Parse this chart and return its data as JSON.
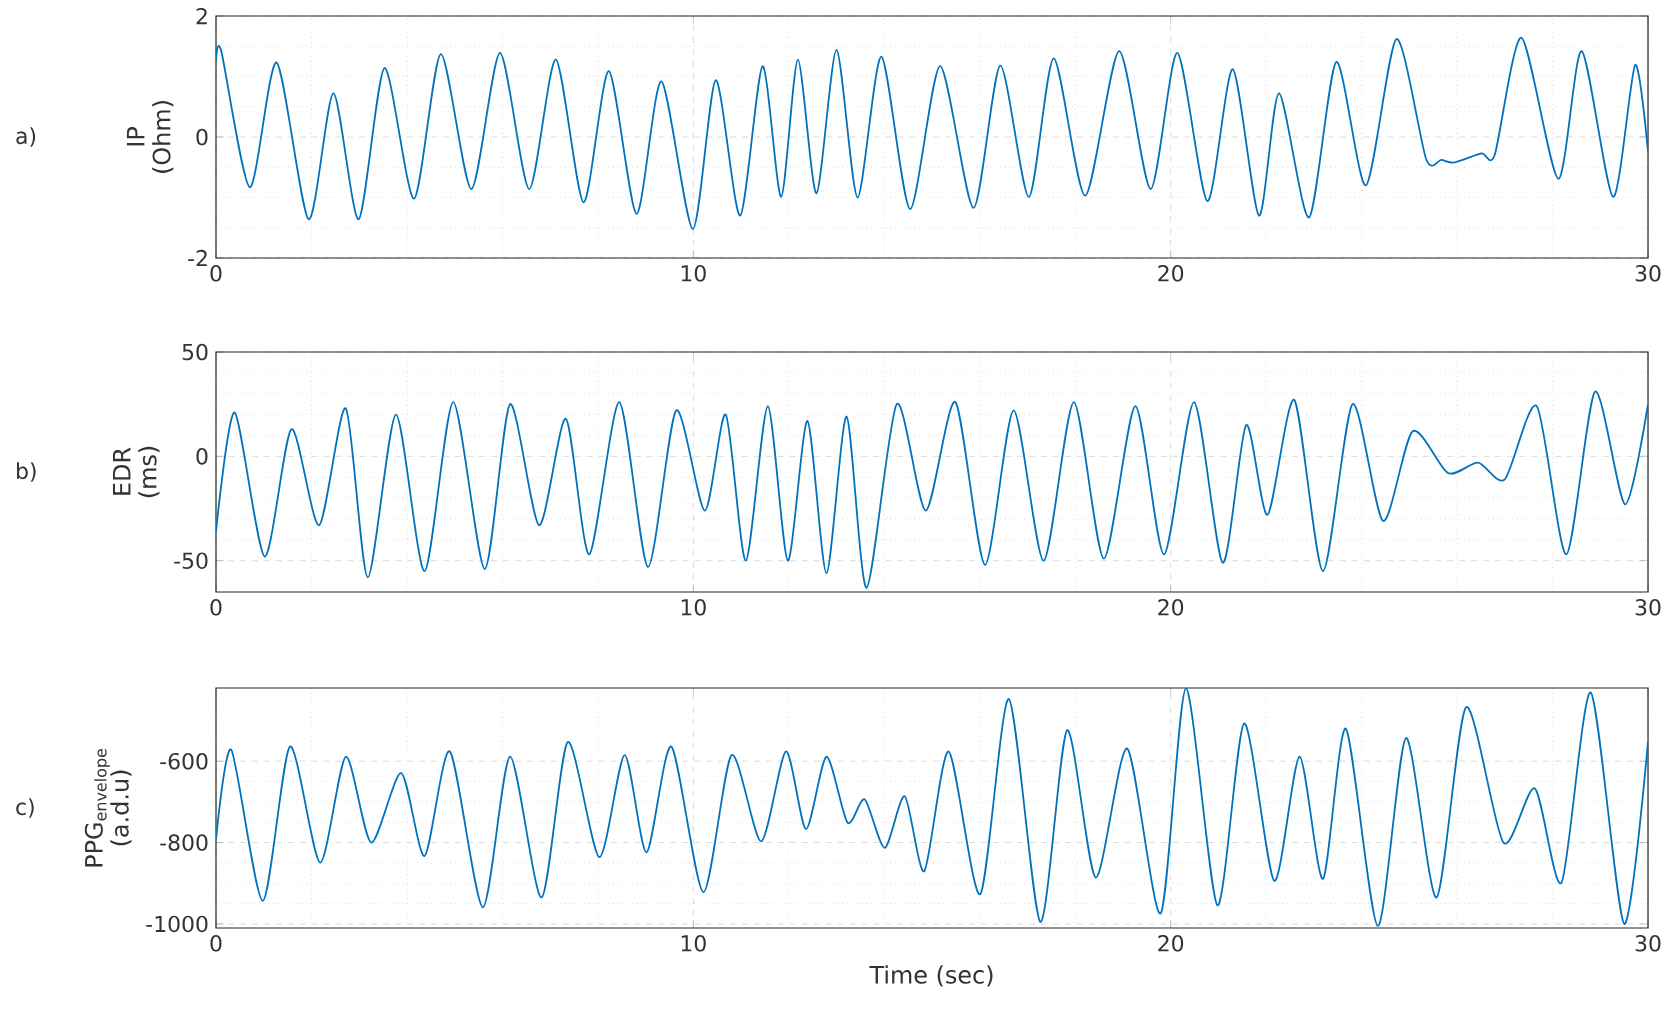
{
  "chart_data": [
    {
      "type": "line",
      "ylabel": "IP (Ohm)",
      "annotations": [
        "a)"
      ],
      "color": "#0072bd",
      "grid": true,
      "xlim": [
        0,
        30
      ],
      "xticks": [
        0,
        10,
        20,
        30
      ],
      "ylim": [
        -2,
        2
      ],
      "yticks": [
        -2,
        0,
        2
      ],
      "x": [
        0,
        0.11,
        0.71,
        1.27,
        1.94,
        2.46,
        2.99,
        3.53,
        4.15,
        4.71,
        5.35,
        5.95,
        6.56,
        7.12,
        7.7,
        8.23,
        8.81,
        9.33,
        9.99,
        10.47,
        10.98,
        11.45,
        11.84,
        12.19,
        12.58,
        13.0,
        13.44,
        13.94,
        14.54,
        15.17,
        15.87,
        16.43,
        17.03,
        17.55,
        18.21,
        18.92,
        19.58,
        20.14,
        20.77,
        21.3,
        21.85,
        22.27,
        22.9,
        23.47,
        24.09,
        24.73,
        25.35,
        25.67,
        25.95,
        26.51,
        26.79,
        27.35,
        28.12,
        28.61,
        29.27,
        29.73,
        30
      ],
      "values": [
        1.26,
        1.42,
        -0.83,
        1.23,
        -1.36,
        0.72,
        -1.36,
        1.14,
        -1.02,
        1.37,
        -0.86,
        1.39,
        -0.86,
        1.28,
        -1.08,
        1.09,
        -1.27,
        0.92,
        -1.52,
        0.94,
        -1.3,
        1.17,
        -0.99,
        1.28,
        -0.93,
        1.44,
        -1.0,
        1.33,
        -1.19,
        1.17,
        -1.17,
        1.18,
        -0.99,
        1.3,
        -0.97,
        1.42,
        -0.86,
        1.39,
        -1.06,
        1.12,
        -1.3,
        0.72,
        -1.33,
        1.24,
        -0.8,
        1.62,
        -0.36,
        -0.38,
        -0.42,
        -0.27,
        -0.29,
        1.64,
        -0.69,
        1.42,
        -0.99,
        1.19,
        -0.24
      ]
    },
    {
      "type": "line",
      "ylabel": "EDR (ms)",
      "annotations": [
        "b)"
      ],
      "color": "#0072bd",
      "grid": true,
      "xlim": [
        0,
        30
      ],
      "xticks": [
        0,
        10,
        20,
        30
      ],
      "ylim": [
        -65,
        50
      ],
      "yticks": [
        -50,
        0,
        50
      ],
      "x": [
        0,
        0.39,
        1.02,
        1.58,
        2.16,
        2.72,
        3.18,
        3.77,
        4.37,
        4.97,
        5.63,
        6.16,
        6.77,
        7.33,
        7.82,
        8.45,
        9.05,
        9.64,
        10.24,
        10.68,
        11.1,
        11.56,
        11.98,
        12.39,
        12.79,
        13.21,
        13.63,
        14.26,
        14.87,
        15.49,
        16.11,
        16.71,
        17.34,
        17.97,
        18.6,
        19.26,
        19.86,
        20.49,
        21.09,
        21.58,
        22.03,
        22.59,
        23.19,
        23.81,
        24.45,
        25.07,
        25.81,
        26.44,
        27.0,
        27.67,
        28.29,
        28.89,
        29.52,
        30
      ],
      "values": [
        -36,
        21,
        -48,
        13,
        -33,
        23,
        -58,
        20,
        -55,
        26,
        -54,
        25,
        -33,
        18,
        -47,
        26,
        -53,
        22,
        -26,
        20,
        -50,
        24,
        -50,
        17,
        -56,
        19,
        -63,
        25,
        -26,
        26,
        -52,
        22,
        -50,
        26,
        -49,
        24,
        -47,
        26,
        -51,
        15,
        -28,
        27,
        -55,
        25,
        -31,
        12,
        -8,
        -3,
        -11,
        24,
        -47,
        31,
        -23,
        25
      ]
    },
    {
      "type": "line",
      "ylabel": "PPG$_{envelope}$ (a.d.u)",
      "xlabel": "Time (sec)",
      "annotations": [
        "c)"
      ],
      "color": "#0072bd",
      "grid": true,
      "xlim": [
        0,
        30
      ],
      "xticks": [
        0,
        10,
        20,
        30
      ],
      "ylim": [
        -1010,
        -420
      ],
      "yticks": [
        -1000,
        -800,
        -600
      ],
      "x": [
        0,
        0.32,
        0.98,
        1.55,
        2.18,
        2.72,
        3.25,
        3.88,
        4.37,
        4.9,
        5.59,
        6.16,
        6.82,
        7.37,
        8.03,
        8.56,
        9.02,
        9.54,
        10.21,
        10.8,
        11.42,
        11.94,
        12.36,
        12.79,
        13.23,
        13.59,
        14.01,
        14.43,
        14.84,
        15.35,
        16.01,
        16.61,
        17.27,
        17.83,
        18.43,
        19.09,
        19.79,
        20.32,
        20.98,
        21.54,
        22.17,
        22.7,
        23.19,
        23.67,
        24.34,
        24.93,
        25.57,
        26.19,
        26.97,
        27.63,
        28.19,
        28.8,
        29.5,
        30
      ],
      "values": [
        -792,
        -572,
        -943,
        -564,
        -849,
        -589,
        -800,
        -629,
        -833,
        -576,
        -959,
        -589,
        -935,
        -553,
        -836,
        -585,
        -824,
        -564,
        -922,
        -585,
        -797,
        -576,
        -767,
        -589,
        -751,
        -694,
        -813,
        -686,
        -870,
        -576,
        -927,
        -447,
        -995,
        -524,
        -886,
        -569,
        -974,
        -421,
        -954,
        -507,
        -894,
        -589,
        -889,
        -520,
        -1005,
        -543,
        -935,
        -467,
        -800,
        -667,
        -898,
        -431,
        -1000,
        -551
      ]
    }
  ]
}
